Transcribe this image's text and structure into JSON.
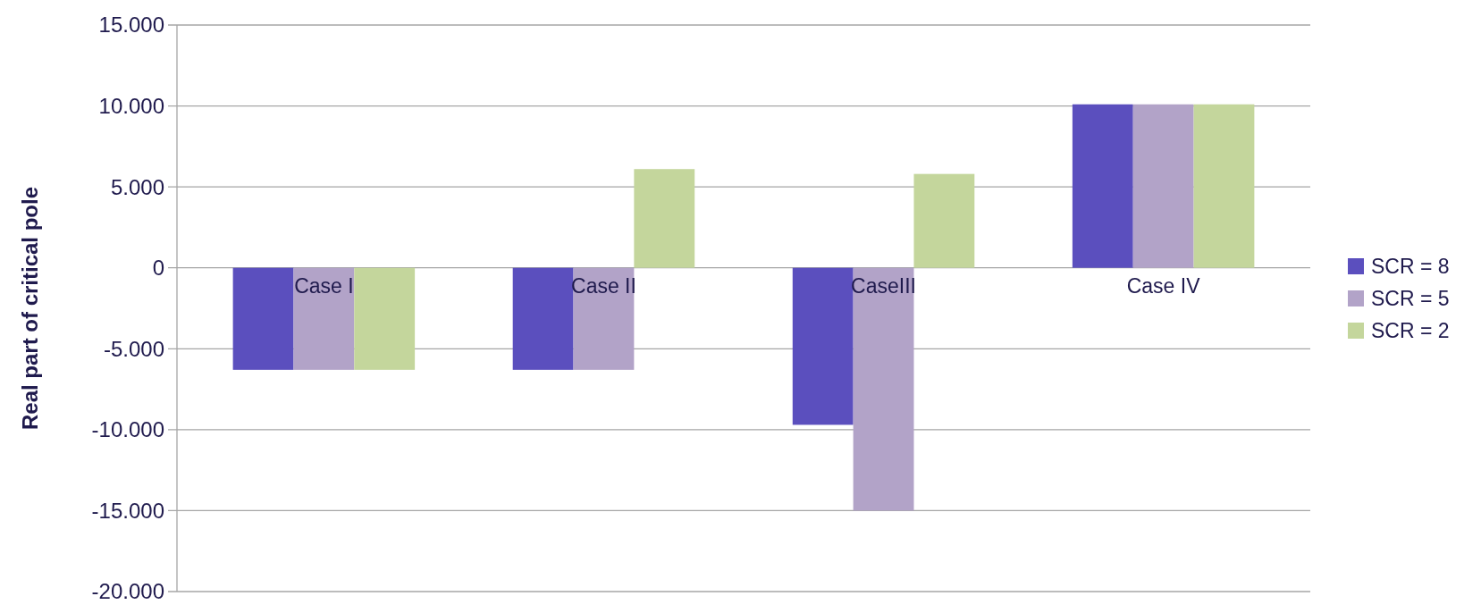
{
  "chart_data": {
    "type": "bar",
    "ylabel": "Real part of critical pole",
    "categories": [
      "Case I",
      "Case II",
      "CaseIII",
      "Case IV"
    ],
    "series": [
      {
        "name": "SCR = 8",
        "color": "#5b4fbe",
        "values": [
          -6300,
          -6300,
          -9700,
          10100
        ]
      },
      {
        "name": "SCR = 5",
        "color": "#b2a3c8",
        "values": [
          -6300,
          -6300,
          -15000,
          10100
        ]
      },
      {
        "name": "SCR = 2",
        "color": "#c4d69c",
        "values": [
          -6300,
          6100,
          5800,
          10100
        ]
      }
    ],
    "ylim": [
      -20000,
      15000
    ],
    "yticks": [
      {
        "value": -20000,
        "label": "-20.000"
      },
      {
        "value": -15000,
        "label": "-15.000"
      },
      {
        "value": -10000,
        "label": "-10.000"
      },
      {
        "value": -5000,
        "label": "-5.000"
      },
      0,
      {
        "value": 5000,
        "label": "5.000"
      },
      {
        "value": 10000,
        "label": "10.000"
      },
      {
        "value": 15000,
        "label": "15.000"
      }
    ],
    "grid": "y",
    "legend": "right"
  }
}
